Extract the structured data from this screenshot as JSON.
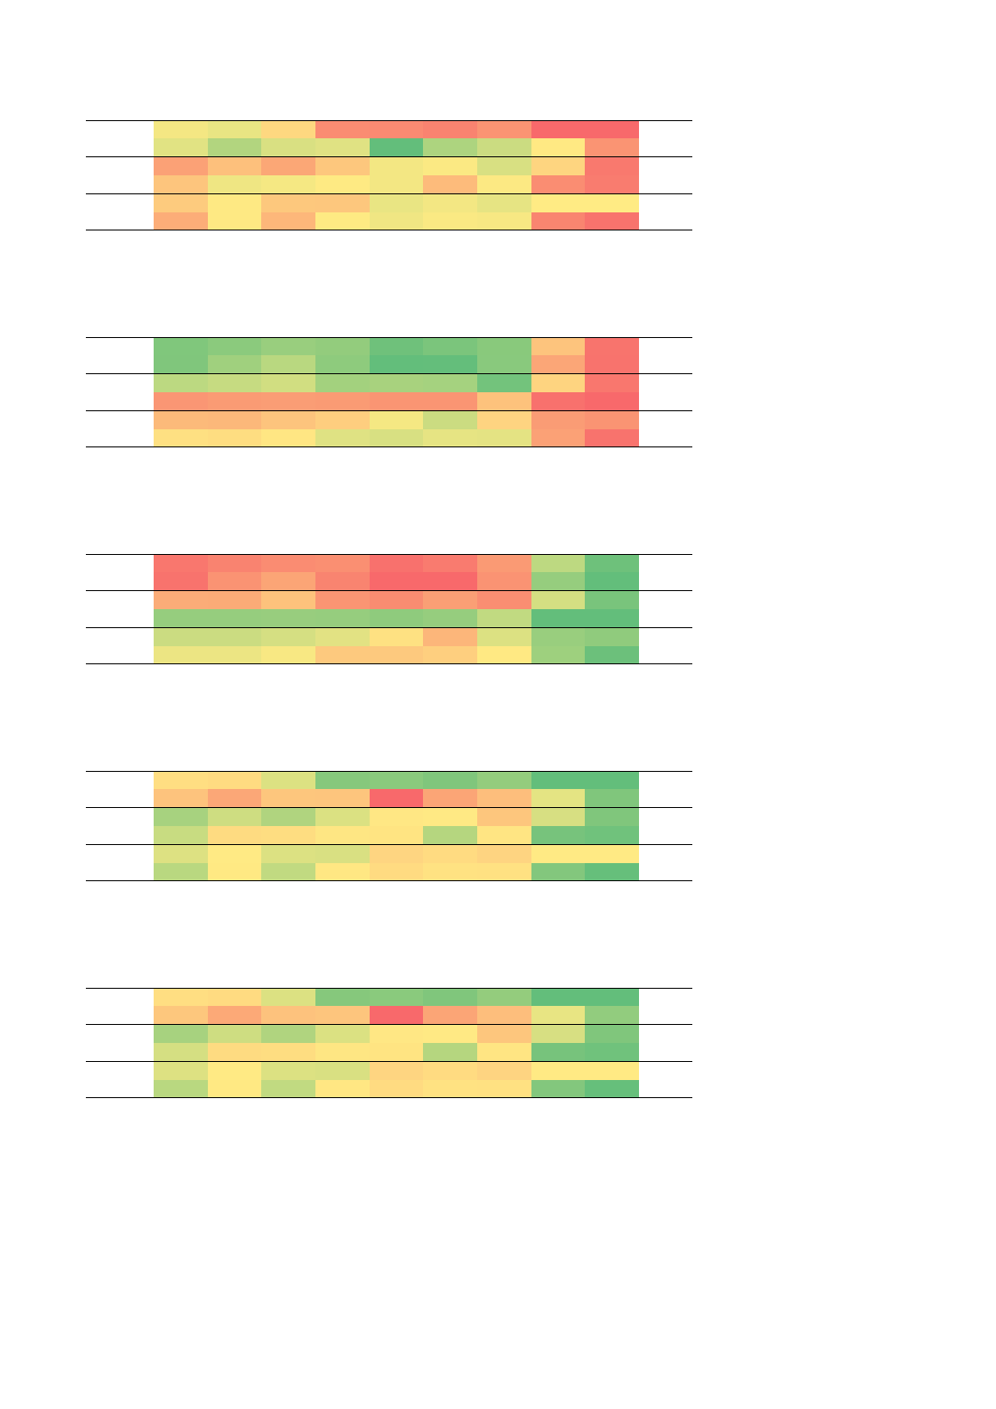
{
  "chart_data": [
    {
      "type": "heatmap",
      "rows": 6,
      "columns": 9,
      "colorscale": [
        "#63be7b",
        "#ffeb84",
        "#f8696b"
      ],
      "cells": [
        [
          "#f4e783",
          "#e9e583",
          "#fed880",
          "#fa8c72",
          "#fa8a72",
          "#f98370",
          "#fa9473",
          "#f8696b",
          "#f8696b"
        ],
        [
          "#e1e383",
          "#b2d57f",
          "#d9e082",
          "#e0e283",
          "#63be7b",
          "#add47f",
          "#cbdc81",
          "#ffe983",
          "#fa9473"
        ],
        [
          "#fba176",
          "#fdc07c",
          "#fba776",
          "#fdc77d",
          "#f3e783",
          "#fbe983",
          "#d8e082",
          "#fed580",
          "#f9796e"
        ],
        [
          "#fdc57d",
          "#efe683",
          "#f5e883",
          "#feea83",
          "#f3e783",
          "#fdbb7b",
          "#fce983",
          "#fa8d72",
          "#f97c6f"
        ],
        [
          "#fdcb7e",
          "#fee983",
          "#fdc87d",
          "#fdc77d",
          "#e9e583",
          "#f3e783",
          "#e6e483",
          "#ffeb84",
          "#ffeb84"
        ],
        [
          "#fcad78",
          "#fee983",
          "#fdb77a",
          "#feea83",
          "#f0e683",
          "#fae983",
          "#f7e883",
          "#f98570",
          "#f8736d"
        ]
      ]
    },
    {
      "type": "heatmap",
      "rows": 6,
      "columns": 9,
      "colorscale": [
        "#63be7b",
        "#ffeb84",
        "#f8696b"
      ],
      "cells": [
        [
          "#80c77c",
          "#8bca7d",
          "#99ce7e",
          "#93cc7d",
          "#6fc17b",
          "#7bc57c",
          "#89c97c",
          "#fdc47d",
          "#f8746d"
        ],
        [
          "#80c67c",
          "#a0d07e",
          "#b9d880",
          "#8ecb7d",
          "#63be7b",
          "#64be7b",
          "#89c97d",
          "#fba677",
          "#f8736d"
        ],
        [
          "#bcd981",
          "#c6db81",
          "#d1de81",
          "#a3d17e",
          "#a8d27e",
          "#a5d27f",
          "#73c37c",
          "#fed480",
          "#f9776e"
        ],
        [
          "#fa9674",
          "#fa9b74",
          "#fa9d75",
          "#fa9b74",
          "#fa9573",
          "#fa9573",
          "#fdc27c",
          "#f8716d",
          "#f8696b"
        ],
        [
          "#fcba7a",
          "#fcb87a",
          "#fdc47d",
          "#fece7f",
          "#f5e883",
          "#cbdc81",
          "#fed481",
          "#fa9c75",
          "#fa9473"
        ],
        [
          "#fee082",
          "#fedd81",
          "#ffe683",
          "#dfe283",
          "#d8e082",
          "#e6e483",
          "#e4e383",
          "#fba176",
          "#f8736d"
        ]
      ]
    },
    {
      "type": "heatmap",
      "rows": 6,
      "columns": 9,
      "colorscale": [
        "#63be7b",
        "#ffeb84",
        "#f8696b"
      ],
      "cells": [
        [
          "#f9776e",
          "#f98370",
          "#fa8c72",
          "#fa8f72",
          "#f8716d",
          "#f97b6f",
          "#fa9a74",
          "#bdd981",
          "#6ec17b"
        ],
        [
          "#f8736d",
          "#fa9373",
          "#fba576",
          "#f98470",
          "#f8696b",
          "#f8696b",
          "#fa9373",
          "#96cd7e",
          "#63be7b"
        ],
        [
          "#fbac78",
          "#fbab77",
          "#fdc27c",
          "#fa9573",
          "#f98c71",
          "#fa9f75",
          "#fa8e72",
          "#d4df82",
          "#79c47c"
        ],
        [
          "#96cd7e",
          "#96cd7e",
          "#98cd7e",
          "#96cd7e",
          "#8fcb7d",
          "#96cd7e",
          "#c1da81",
          "#63be7b",
          "#63be7b"
        ],
        [
          "#cbdc81",
          "#cbdc81",
          "#d5df82",
          "#e2e283",
          "#fee182",
          "#fcb67a",
          "#dce182",
          "#99ce7e",
          "#90cb7d"
        ],
        [
          "#ece583",
          "#ece583",
          "#f8e883",
          "#fdc97e",
          "#fdc97e",
          "#fecf7f",
          "#ffe983",
          "#9ed07e",
          "#6cc07b"
        ]
      ]
    },
    {
      "type": "heatmap",
      "rows": 6,
      "columns": 9,
      "colorscale": [
        "#63be7b",
        "#ffeb84",
        "#f8696b"
      ],
      "cells": [
        [
          "#ffde82",
          "#ffdb81",
          "#dce182",
          "#86c87c",
          "#8aca7d",
          "#80c67c",
          "#94cc7d",
          "#63be7b",
          "#63be7b"
        ],
        [
          "#fdc37d",
          "#fba777",
          "#fdc67d",
          "#fdc57d",
          "#f8696b",
          "#fba576",
          "#fdbe7c",
          "#e4e483",
          "#80c67c"
        ],
        [
          "#a7d27f",
          "#cedd81",
          "#b0d47f",
          "#dbe182",
          "#ffe784",
          "#ffe984",
          "#fdc67d",
          "#d7df82",
          "#80c67c"
        ],
        [
          "#c8dc81",
          "#fedb81",
          "#fedd81",
          "#fee683",
          "#ffe482",
          "#b5d67f",
          "#ffe583",
          "#77c37c",
          "#70c27c"
        ],
        [
          "#dde182",
          "#ffea84",
          "#dce182",
          "#d9e082",
          "#fed581",
          "#ffdb81",
          "#fed481",
          "#ffea84",
          "#ffea84"
        ],
        [
          "#b9d880",
          "#ffe983",
          "#c1da81",
          "#ffe783",
          "#ffdb81",
          "#ffe282",
          "#ffe182",
          "#83c77d",
          "#66bf7b"
        ]
      ]
    },
    {
      "type": "heatmap",
      "rows": 6,
      "columns": 9,
      "colorscale": [
        "#63be7b",
        "#ffeb84",
        "#f8696b"
      ],
      "cells": [
        [
          "#ffde82",
          "#ffdb81",
          "#dce182",
          "#86c87c",
          "#8aca7d",
          "#80c67c",
          "#94cc7d",
          "#63be7b",
          "#63be7b"
        ],
        [
          "#fdc77d",
          "#fca977",
          "#fdc27d",
          "#fdc57d",
          "#f8696b",
          "#fba576",
          "#fdbe7c",
          "#e8e583",
          "#92cc7e"
        ],
        [
          "#a7d27f",
          "#cedd81",
          "#b0d47f",
          "#dbe182",
          "#ffe784",
          "#ffe984",
          "#fdc67d",
          "#d7df82",
          "#80c67c"
        ],
        [
          "#d5df82",
          "#fedb81",
          "#fedd81",
          "#fee683",
          "#ffe482",
          "#b5d67f",
          "#ffe583",
          "#77c37c",
          "#70c27c"
        ],
        [
          "#dde182",
          "#ffea84",
          "#dce182",
          "#d9e082",
          "#fed581",
          "#ffdb81",
          "#fed481",
          "#ffea84",
          "#ffea84"
        ],
        [
          "#b9d880",
          "#ffe983",
          "#c1da81",
          "#ffe783",
          "#ffdb81",
          "#ffe282",
          "#ffe182",
          "#83c77d",
          "#66bf7b"
        ]
      ]
    }
  ]
}
